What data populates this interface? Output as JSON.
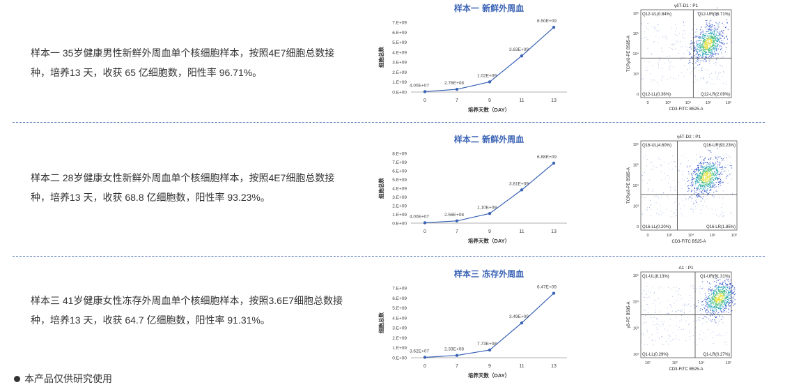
{
  "samples": [
    {
      "description": "样本一 35岁健康男性新鲜外周血单个核细胞样本，按照4E7细胞总数接种，培养13 天，收获 65 亿细胞数，阳性率 96.71%。",
      "chart_title": "样本一  新鲜外周血",
      "flow": {
        "title": "γδT-D1 : P1",
        "ylabel": "TCRγ/δ-PE B585-A",
        "xlabel": "CD3-FITC B525-A",
        "q_ul": "Q12-UL(0.84%)",
        "q_ur": "Q12-UR(96.71%)",
        "q_ll": "Q12-LL(0.36%)",
        "q_lr": "Q12-LR(2.09%)",
        "xticks": [
          "0",
          "10³",
          "10⁴",
          "10⁵",
          "10⁶"
        ],
        "yticks": [
          "10⁶",
          "10⁵",
          "10⁴",
          "10³",
          "0"
        ],
        "gate_x": 0.58,
        "gate_y": 0.55,
        "cluster_x": 0.74,
        "cluster_y": 0.38
      }
    },
    {
      "description": "样本二 28岁健康女性新鲜外周血单个核细胞样本，按照4E7细胞总数接种，培养13 天，收获 68.8 亿细胞数，阳性率 93.23%。",
      "chart_title": "样本二  新鲜外周血",
      "flow": {
        "title": "γδT-D2 : P1",
        "ylabel": "TCRγ/δ-PE B585-A",
        "xlabel": "CD3-FITC B525-A",
        "q_ul": "Q16-UL(4.60%)",
        "q_ur": "Q16-UR(93.23%)",
        "q_ll": "Q16-LL(0.20%)",
        "q_lr": "Q16-LR(1.85%)",
        "xticks": [
          "0",
          "10³",
          "10⁴",
          "10⁵",
          "10⁶"
        ],
        "yticks": [
          "10⁶",
          "10⁵",
          "10⁴",
          "10³",
          "0"
        ],
        "gate_x": 0.38,
        "gate_y": 0.6,
        "cluster_x": 0.68,
        "cluster_y": 0.4
      }
    },
    {
      "description": "样本三 41岁健康女性冻存外周血单个核细胞样本，按照3.6E7细胞总数接种，培养13 天，收获 64.7 亿细胞数，阳性率 91.31%。",
      "chart_title": "样本三  冻存外周血",
      "flow": {
        "title": "A1 : P1",
        "ylabel": "γδ-PE B585-A",
        "xlabel": "CD3-FITC B525-A",
        "q_ul": "Q1-UL(8.13%)",
        "q_ur": "Q1-UR(91.31%)",
        "q_ll": "Q1-LL(0.29%)",
        "q_lr": "Q1-LR(0.27%)",
        "xticks": [
          "10²",
          "10³",
          "10⁴",
          "10⁵"
        ],
        "yticks": [
          "10⁵",
          "10⁴",
          "10³",
          "10²"
        ],
        "gate_x": 0.6,
        "gate_y": 0.5,
        "cluster_x": 0.86,
        "cluster_y": 0.3
      }
    }
  ],
  "chart_data": [
    {
      "type": "line",
      "title": "样本一  新鲜外周血",
      "xlabel": "培养天数（DAY）",
      "ylabel": "细胞总数",
      "categories": [
        "0",
        "7",
        "9",
        "11",
        "13"
      ],
      "values": [
        40000000,
        276000000,
        1020000000,
        3630000000,
        6500000000
      ],
      "labels": [
        "4.00E+07",
        "2.76E+08",
        "1.02E+09",
        "3.63E+09",
        "6.50E+09"
      ],
      "yticks": [
        "0.E+00",
        "1.E+09",
        "2.E+09",
        "3.E+09",
        "4.E+09",
        "5.E+09",
        "6.E+09",
        "7.E+09"
      ],
      "ylim": [
        0,
        7000000000
      ],
      "color": "#3a63b5"
    },
    {
      "type": "line",
      "title": "样本二  新鲜外周血",
      "xlabel": "培养天数（DAY）",
      "ylabel": "细胞总数",
      "categories": [
        "0",
        "7",
        "9",
        "11",
        "13"
      ],
      "values": [
        40000000,
        256000000,
        1100000000,
        3810000000,
        6880000000
      ],
      "labels": [
        "4.00E+07",
        "2.56E+08",
        "1.10E+09",
        "3.81E+09",
        "6.88E+09"
      ],
      "yticks": [
        "0.E+00",
        "1.E+09",
        "2.E+09",
        "3.E+09",
        "4.E+09",
        "5.E+09",
        "6.E+09",
        "7.E+09",
        "8.E+09"
      ],
      "ylim": [
        0,
        8000000000
      ],
      "color": "#3a63b5"
    },
    {
      "type": "line",
      "title": "样本三  冻存外周血",
      "xlabel": "培养天数（DAY）",
      "ylabel": "细胞总数",
      "categories": [
        "0",
        "7",
        "9",
        "11",
        "13"
      ],
      "values": [
        36200000,
        233000000,
        773000000,
        3490000000,
        6470000000
      ],
      "labels": [
        "3.62E+07",
        "2.33E+08",
        "7.73E+08",
        "3.49E+09",
        "6.47E+09"
      ],
      "yticks": [
        "0.E+00",
        "1.E+09",
        "2.E+09",
        "3.E+09",
        "4.E+09",
        "5.E+09",
        "6.E+09",
        "7.E+09"
      ],
      "ylim": [
        0,
        7000000000
      ],
      "color": "#3a63b5"
    }
  ],
  "footer": {
    "text": "本产品仅供研究使用"
  }
}
